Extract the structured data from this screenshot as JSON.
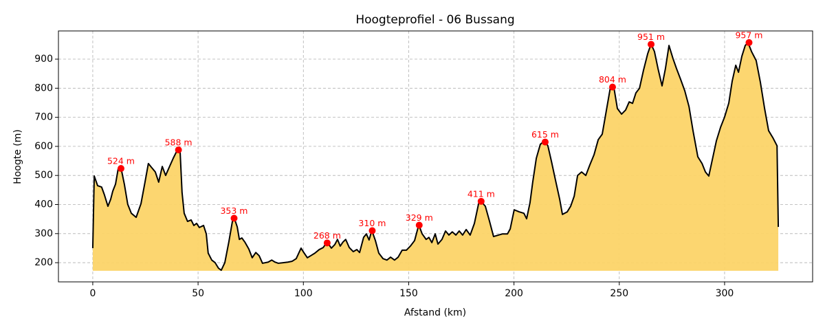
{
  "chart_data": {
    "type": "area",
    "title": "Hoogteprofiel - 06 Bussang",
    "x_label": "Afstand (km)",
    "y_label": "Hoogte (m)",
    "x": [
      0,
      0.7,
      2.3,
      4.2,
      5.5,
      7.2,
      8.5,
      9.5,
      10.8,
      12.1,
      13.4,
      15,
      16.6,
      18.3,
      20.6,
      22.9,
      24.8,
      26.4,
      28.1,
      29.7,
      31.3,
      33,
      34.6,
      36.6,
      38.2,
      40.2,
      41.5,
      42.4,
      43.4,
      45,
      46.7,
      48,
      49.3,
      50.6,
      52.6,
      53.9,
      54.8,
      56.5,
      58.1,
      59.7,
      61,
      62.7,
      64.6,
      66.3,
      67.3,
      68.6,
      69.6,
      70.8,
      72.2,
      74.1,
      75.7,
      77.4,
      79,
      80.6,
      83.3,
      85,
      86.5,
      88.1,
      90.4,
      92.7,
      94.7,
      96.6,
      98.9,
      100.2,
      101.9,
      103.5,
      105.5,
      107.5,
      109.4,
      111.3,
      113.3,
      114.9,
      116.2,
      117.5,
      118.8,
      120.1,
      121.8,
      123.7,
      125.4,
      126.7,
      128.6,
      129.9,
      131.2,
      132.5,
      134.2,
      135.8,
      137.8,
      139.7,
      141.4,
      143.3,
      145,
      146.9,
      148.9,
      150.8,
      152.8,
      154.8,
      156.4,
      158.3,
      159.6,
      161,
      162.6,
      163.9,
      165.8,
      167.5,
      169.1,
      170.7,
      172.4,
      174,
      175.6,
      177.3,
      179.2,
      181.2,
      183.2,
      184.5,
      186.4,
      188.4,
      190.3,
      192.6,
      194.6,
      196.9,
      198.2,
      200.1,
      202.4,
      204.7,
      206,
      207.6,
      208.9,
      210.6,
      212.5,
      214.5,
      216.1,
      217.8,
      219.7,
      221.7,
      223,
      225.3,
      226.9,
      228.6,
      230.2,
      232.1,
      234.1,
      236,
      238,
      240,
      241.9,
      243.9,
      245.9,
      247.5,
      249.1,
      251.1,
      253,
      254.7,
      256.3,
      257.9,
      259.6,
      261.5,
      263.5,
      265.1,
      266.7,
      268.4,
      270.3,
      271.9,
      273.6,
      275.5,
      277.2,
      279.1,
      281.1,
      283.1,
      285,
      287.3,
      289.3,
      290.9,
      292.5,
      294.2,
      296.1,
      298.1,
      300,
      302,
      303.6,
      305.3,
      306.6,
      308.2,
      309.8,
      311.1,
      312.8,
      315,
      317,
      319,
      320.9,
      322.9,
      324.9,
      325.5
    ],
    "values": [
      250,
      498,
      465,
      460,
      434,
      394,
      418,
      446,
      470,
      524,
      526,
      470,
      401,
      370,
      356,
      403,
      477,
      541,
      526,
      512,
      477,
      531,
      500,
      533,
      559,
      588,
      578,
      441,
      370,
      342,
      347,
      328,
      335,
      321,
      328,
      299,
      233,
      209,
      200,
      181,
      174,
      200,
      271,
      342,
      351,
      323,
      280,
      285,
      271,
      247,
      217,
      235,
      224,
      198,
      202,
      209,
      202,
      198,
      200,
      202,
      205,
      214,
      250,
      235,
      217,
      224,
      233,
      245,
      252,
      271,
      250,
      262,
      280,
      257,
      271,
      280,
      252,
      238,
      245,
      235,
      287,
      299,
      278,
      311,
      276,
      233,
      214,
      209,
      219,
      209,
      219,
      243,
      243,
      257,
      276,
      330,
      299,
      280,
      287,
      269,
      299,
      264,
      280,
      309,
      295,
      306,
      295,
      309,
      295,
      314,
      295,
      335,
      403,
      410,
      394,
      342,
      290,
      295,
      299,
      299,
      316,
      382,
      375,
      370,
      351,
      406,
      477,
      559,
      607,
      619,
      602,
      548,
      484,
      418,
      366,
      375,
      394,
      429,
      500,
      512,
      500,
      536,
      571,
      623,
      642,
      725,
      808,
      800,
      730,
      711,
      725,
      753,
      748,
      784,
      800,
      862,
      919,
      952,
      926,
      867,
      808,
      867,
      947,
      902,
      867,
      831,
      791,
      737,
      654,
      564,
      541,
      512,
      498,
      555,
      619,
      666,
      701,
      749,
      824,
      879,
      855,
      910,
      947,
      957,
      926,
      895,
      820,
      730,
      654,
      630,
      602,
      323
    ],
    "line_color": "#000000",
    "fill_color": "#fcd468",
    "fill_base": 172,
    "peaks": {
      "x": [
        13.4,
        40.7,
        67.1,
        111.3,
        132.7,
        155,
        184.4,
        214.8,
        246.8,
        265.1,
        311.6
      ],
      "values": [
        524,
        588,
        353,
        268,
        310,
        329,
        411,
        615,
        804,
        951,
        957
      ],
      "value_labels": [
        "524 m",
        "588 m",
        "353 m",
        "268 m",
        "310 m",
        "329 m",
        "411 m",
        "615 m",
        "804 m",
        "951 m",
        "957 m"
      ],
      "color": "#ff0000"
    },
    "xlim": [
      -16.3,
      341.8
    ],
    "ylim": [
      134,
      997
    ],
    "xticks": [
      0,
      50,
      100,
      150,
      200,
      250,
      300
    ],
    "yticks": [
      200,
      300,
      400,
      500,
      600,
      700,
      800,
      900
    ],
    "grid": true
  }
}
